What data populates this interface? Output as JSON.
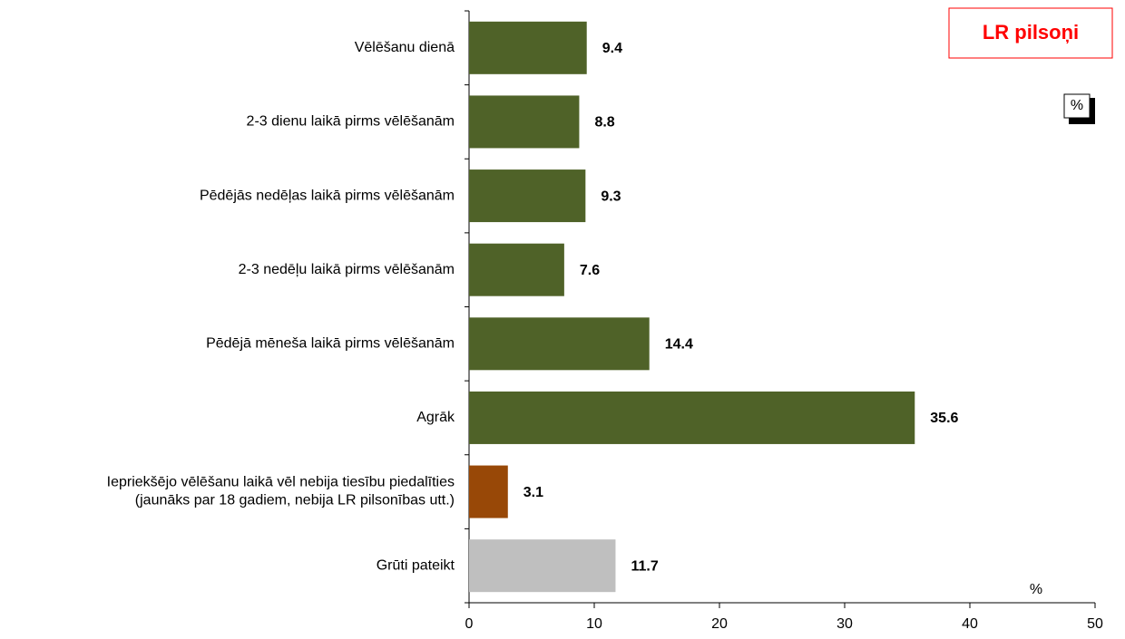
{
  "chart_data": {
    "type": "bar",
    "orientation": "horizontal",
    "categories": [
      "Vēlēšanu dienā",
      "2-3 dienu laikā pirms vēlēšanām",
      "Pēdējās nedēļas laikā pirms vēlēšanām",
      "2-3 nedēļu laikā pirms vēlēšanām",
      "Pēdējā mēneša laikā pirms vēlēšanām",
      "Agrāk",
      "Iepriekšējo vēlēšanu laikā vēl nebija tiesību piedalīties\n(jaunāks par 18 gadiem, nebija LR pilsonības utt.)",
      "Grūti pateikt"
    ],
    "values": [
      9.4,
      8.8,
      9.3,
      7.6,
      14.4,
      35.6,
      3.1,
      11.7
    ],
    "colors": [
      "#4f6228",
      "#4f6228",
      "#4f6228",
      "#4f6228",
      "#4f6228",
      "#4f6228",
      "#984807",
      "#bfbfbf"
    ],
    "xlim": [
      0,
      50
    ],
    "xticks": [
      0,
      10,
      20,
      30,
      40,
      50
    ],
    "xlabel": "%",
    "unit_box": "%",
    "legend_box": "LR pilsoņi"
  }
}
